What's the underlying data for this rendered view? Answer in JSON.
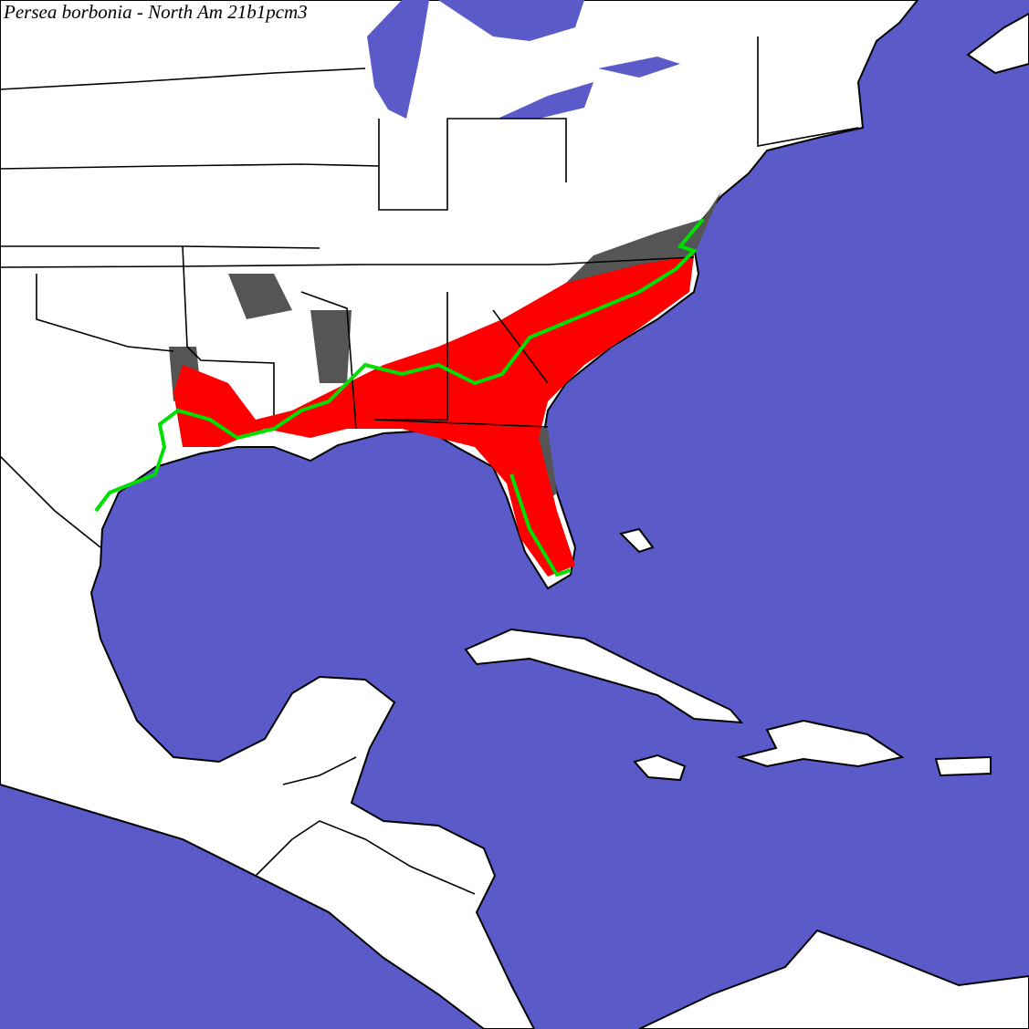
{
  "title": "Persea borbonia - North Am 21b1pcm3"
}
